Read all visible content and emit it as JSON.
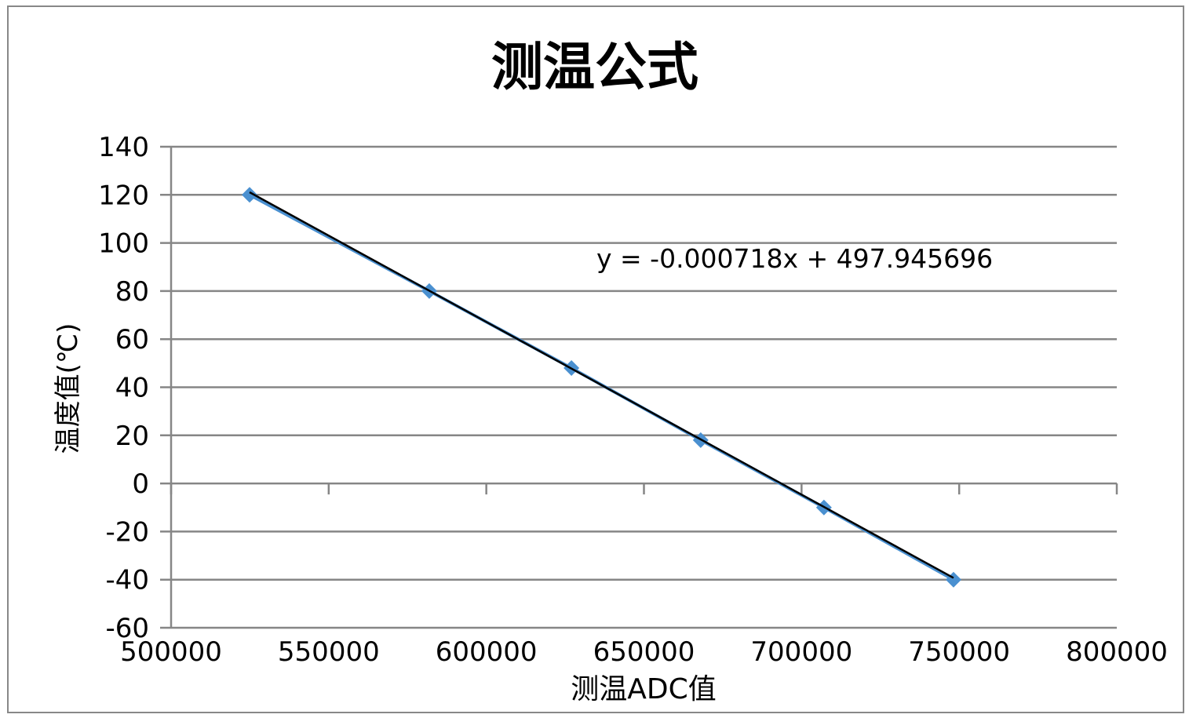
{
  "chart_data": {
    "type": "scatter",
    "title": "测温公式",
    "xlabel": "测温ADC值",
    "ylabel": "温度值(℃)",
    "xlim": [
      500000,
      800000
    ],
    "ylim": [
      -60,
      140
    ],
    "xticks": [
      500000,
      550000,
      600000,
      650000,
      700000,
      750000,
      800000
    ],
    "yticks": [
      -60,
      -40,
      -20,
      0,
      20,
      40,
      60,
      80,
      100,
      120,
      140
    ],
    "grid": true,
    "legend": "none",
    "series": [
      {
        "x": [
          524900,
          581900,
          627000,
          668000,
          707100,
          748200
        ],
        "y": [
          120,
          80,
          48,
          18,
          -10,
          -40
        ],
        "color": "#4a90d0",
        "marker": "diamond",
        "line": true
      }
    ],
    "trendline": {
      "type": "linear",
      "slope": -0.000718,
      "intercept": 497.945696,
      "color": "#000000",
      "equation_label": "y = -0.000718x + 497.945696"
    }
  }
}
